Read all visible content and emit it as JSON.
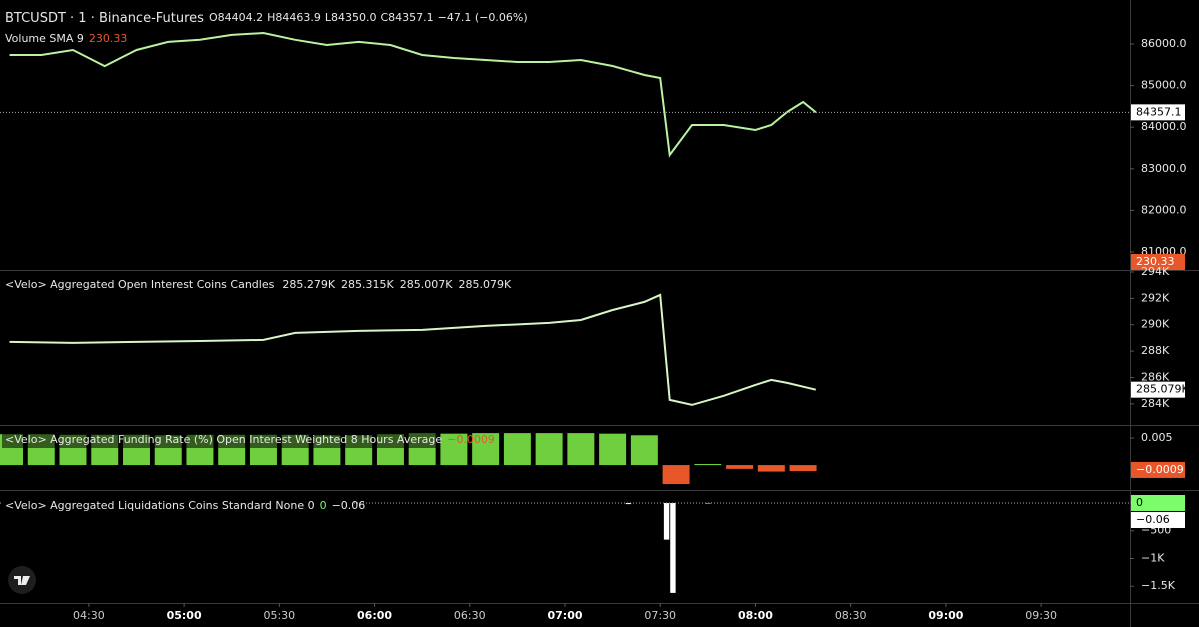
{
  "chart_data": [
    {
      "type": "line",
      "title": "BTCUSDT · 1 · Binance-Futures",
      "ohlc_labels": [
        "O84404.2",
        "H84463.9",
        "L84350.0",
        "C84357.1"
      ],
      "change_label": "−47.1 (−0.06%)",
      "indicator": "Volume SMA 9",
      "volume_sma": 230.33,
      "volume_sma_color": "#e8572a",
      "color": "#b9f2a0",
      "x": [
        "04:05",
        "04:15",
        "04:25",
        "04:35",
        "04:45",
        "04:55",
        "05:05",
        "05:15",
        "05:25",
        "05:35",
        "05:45",
        "05:55",
        "06:05",
        "06:15",
        "06:25",
        "06:35",
        "06:45",
        "06:55",
        "07:05",
        "07:15",
        "07:25",
        "07:30",
        "07:33",
        "07:40",
        "07:50",
        "08:00",
        "08:05",
        "08:10",
        "08:15",
        "08:19"
      ],
      "values": [
        85735,
        85735,
        85856,
        85470,
        85856,
        86050,
        86100,
        86220,
        86265,
        86100,
        85976,
        86050,
        85976,
        85735,
        85663,
        85615,
        85567,
        85567,
        85615,
        85471,
        85255,
        85183,
        83332,
        84053,
        84053,
        83933,
        84053,
        84365,
        84606,
        84357.1
      ],
      "xlim": [
        "04:02",
        "09:58"
      ],
      "ylim": [
        80567,
        87058
      ],
      "yticks": [
        {
          "value": 81000,
          "label": "81000.0"
        },
        {
          "value": 82000,
          "label": "82000.0"
        },
        {
          "value": 83000,
          "label": "83000.0"
        },
        {
          "value": 84000,
          "label": "84000.0"
        },
        {
          "value": 85000,
          "label": "85000.0"
        },
        {
          "value": 86000,
          "label": "86000.0"
        }
      ],
      "markers": [
        {
          "value": 84357.1,
          "color": "#ffffff",
          "text_color": "#000000",
          "line": true
        }
      ]
    },
    {
      "type": "line",
      "title": "<Velo> Aggregated Open Interest Coins Candles",
      "header_values": [
        "285.279K",
        "285.315K",
        "285.007K",
        "285.079K"
      ],
      "color": "#d8f5c8",
      "x": [
        "04:05",
        "04:25",
        "04:45",
        "05:05",
        "05:25",
        "05:35",
        "05:55",
        "06:15",
        "06:35",
        "06:55",
        "07:05",
        "07:15",
        "07:25",
        "07:30",
        "07:33",
        "07:40",
        "07:50",
        "08:00",
        "08:05",
        "08:10",
        "08:19"
      ],
      "values": [
        288.7,
        288.62,
        288.7,
        288.77,
        288.85,
        289.38,
        289.53,
        289.61,
        289.91,
        290.14,
        290.36,
        291.12,
        291.73,
        292.26,
        284.3,
        283.92,
        284.61,
        285.44,
        285.82,
        285.59,
        285.079
      ],
      "xlim": [
        "04:02",
        "09:58"
      ],
      "ylim": [
        282.4,
        294.15
      ],
      "yticks": [
        {
          "value": 284,
          "label": "284K"
        },
        {
          "value": 286,
          "label": "286K"
        },
        {
          "value": 288,
          "label": "288K"
        },
        {
          "value": 290,
          "label": "290K"
        },
        {
          "value": 292,
          "label": "292K"
        },
        {
          "value": 294,
          "label": "294K"
        }
      ],
      "markers": [
        {
          "value": 285.079,
          "label": "285.079K",
          "color": "#ffffff",
          "text_color": "#000000"
        }
      ]
    },
    {
      "type": "bar",
      "title": "<Velo> Aggregated Funding Rate (%) Open Interest Weighted 8 Hours Average",
      "color": "#6fcf3f",
      "negative_color": "#e8572a",
      "x": [
        "04:05",
        "04:15",
        "04:25",
        "04:35",
        "04:45",
        "04:55",
        "05:05",
        "05:15",
        "05:25",
        "05:35",
        "05:45",
        "05:55",
        "06:05",
        "06:15",
        "06:25",
        "06:35",
        "06:45",
        "06:55",
        "07:05",
        "07:15",
        "07:25",
        "07:35",
        "07:45",
        "07:55",
        "08:05",
        "08:15"
      ],
      "values": [
        0.0057,
        0.0057,
        0.0056,
        0.0056,
        0.0056,
        0.0055,
        0.0056,
        0.0056,
        0.0056,
        0.0056,
        0.0055,
        0.0055,
        0.0057,
        0.0059,
        0.0058,
        0.0059,
        0.0059,
        0.0059,
        0.0059,
        0.0058,
        0.0055,
        -0.0035,
        0.0002,
        -0.0007,
        -0.0012,
        -0.0011
      ],
      "xlim": [
        "04:02",
        "09:58"
      ],
      "ylim": [
        -0.0046,
        0.0074
      ],
      "yticks": [
        0.005
      ],
      "markers": [
        {
          "value": -0.0009,
          "label": "−0.0009",
          "color": "#e8572a",
          "text_color": "#ffffff"
        }
      ]
    },
    {
      "type": "bar",
      "title": "<Velo> Aggregated Liquidations Coins Standard None 0",
      "color": "#ffffff",
      "negative_color": "#ffffff",
      "x": [
        "07:20",
        "07:32",
        "07:34",
        "07:45"
      ],
      "values": [
        -20,
        -660,
        -1620,
        -10
      ],
      "xlim": [
        "04:02",
        "09:58"
      ],
      "ylim": [
        -1802,
        234
      ],
      "yticks": [
        0,
        {
          "value": -500,
          "label": "−500"
        },
        {
          "value": -1000,
          "label": "−1K"
        },
        {
          "value": -1500,
          "label": "−1.5K"
        }
      ],
      "xticks": [
        "04:30",
        "05:00",
        "05:30",
        "06:00",
        "06:30",
        "07:00",
        "07:30",
        "08:00",
        "08:30",
        "09:00",
        "09:30"
      ],
      "markers": [
        {
          "value": 0,
          "color": "#7cfc6a",
          "text_color": "#000000",
          "line": true
        },
        {
          "value": -0.06,
          "label": "−0.06",
          "color": "#ffffff",
          "text_color": "#000000"
        }
      ]
    }
  ]
}
